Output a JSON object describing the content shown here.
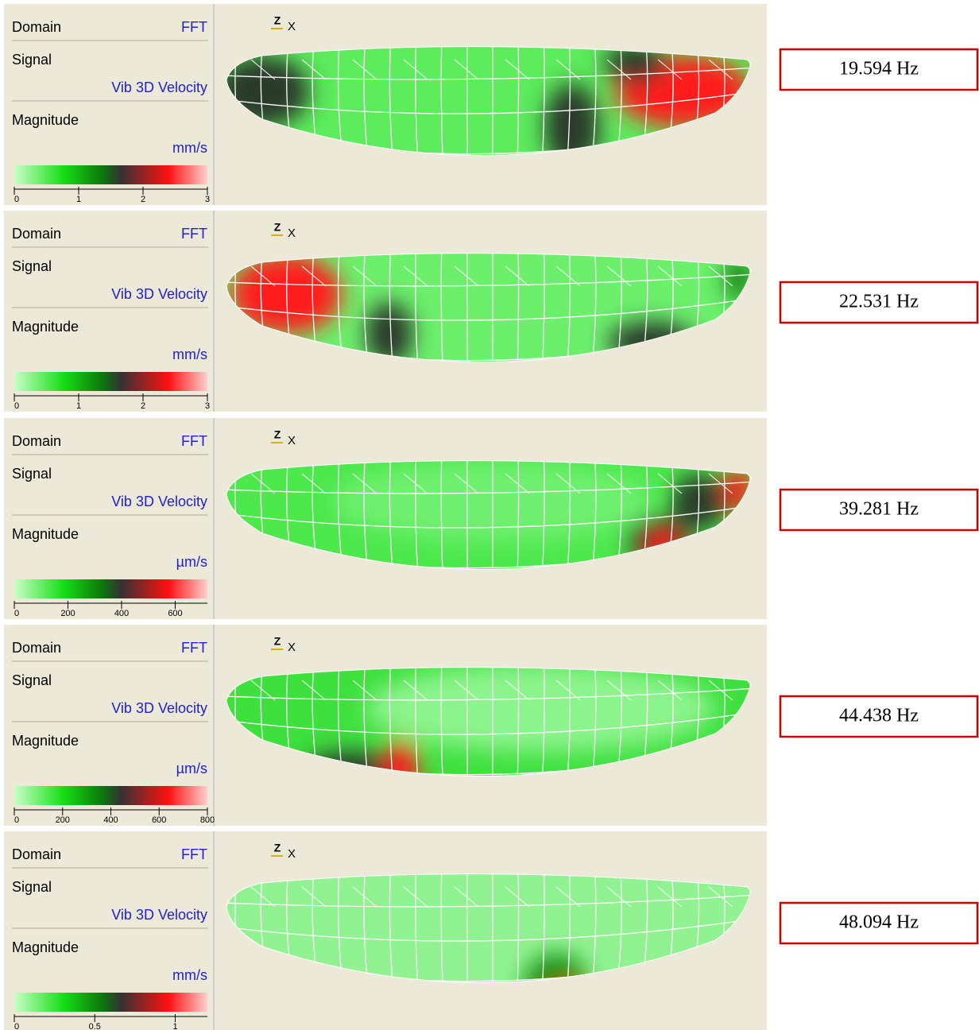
{
  "panels": [
    {
      "domain_label": "Domain",
      "domain": "FFT",
      "signal_label": "Signal",
      "signal": "Vib 3D Velocity",
      "magnitude_label": "Magnitude",
      "unit": "mm/s",
      "scale": {
        "lim": [
          0,
          3
        ],
        "ticks": [
          0,
          1,
          2,
          3
        ]
      },
      "axes": [
        "Z",
        "X"
      ],
      "frequency": "19.594 Hz"
    },
    {
      "domain_label": "Domain",
      "domain": "FFT",
      "signal_label": "Signal",
      "signal": "Vib 3D Velocity",
      "magnitude_label": "Magnitude",
      "unit": "mm/s",
      "scale": {
        "lim": [
          0,
          3
        ],
        "ticks": [
          0,
          1,
          2,
          3
        ]
      },
      "axes": [
        "Z",
        "X"
      ],
      "frequency": "22.531 Hz"
    },
    {
      "domain_label": "Domain",
      "domain": "FFT",
      "signal_label": "Signal",
      "signal": "Vib 3D Velocity",
      "magnitude_label": "Magnitude",
      "unit": "µm/s",
      "scale": {
        "lim": [
          0,
          720
        ],
        "ticks": [
          0,
          200,
          400,
          600
        ]
      },
      "axes": [
        "Z",
        "X"
      ],
      "frequency": "39.281 Hz"
    },
    {
      "domain_label": "Domain",
      "domain": "FFT",
      "signal_label": "Signal",
      "signal": "Vib 3D Velocity",
      "magnitude_label": "Magnitude",
      "unit": "µm/s",
      "scale": {
        "lim": [
          0,
          800
        ],
        "ticks": [
          0,
          200,
          400,
          600,
          800
        ]
      },
      "axes": [
        "Z",
        "X"
      ],
      "frequency": "44.438 Hz"
    },
    {
      "domain_label": "Domain",
      "domain": "FFT",
      "signal_label": "Signal",
      "signal": "Vib 3D Velocity",
      "magnitude_label": "Magnitude",
      "unit": "mm/s",
      "scale": {
        "lim": [
          0,
          1.2
        ],
        "ticks": [
          0,
          0.5,
          1
        ]
      },
      "axes": [
        "Z",
        "X"
      ],
      "frequency": "48.094 Hz"
    }
  ]
}
